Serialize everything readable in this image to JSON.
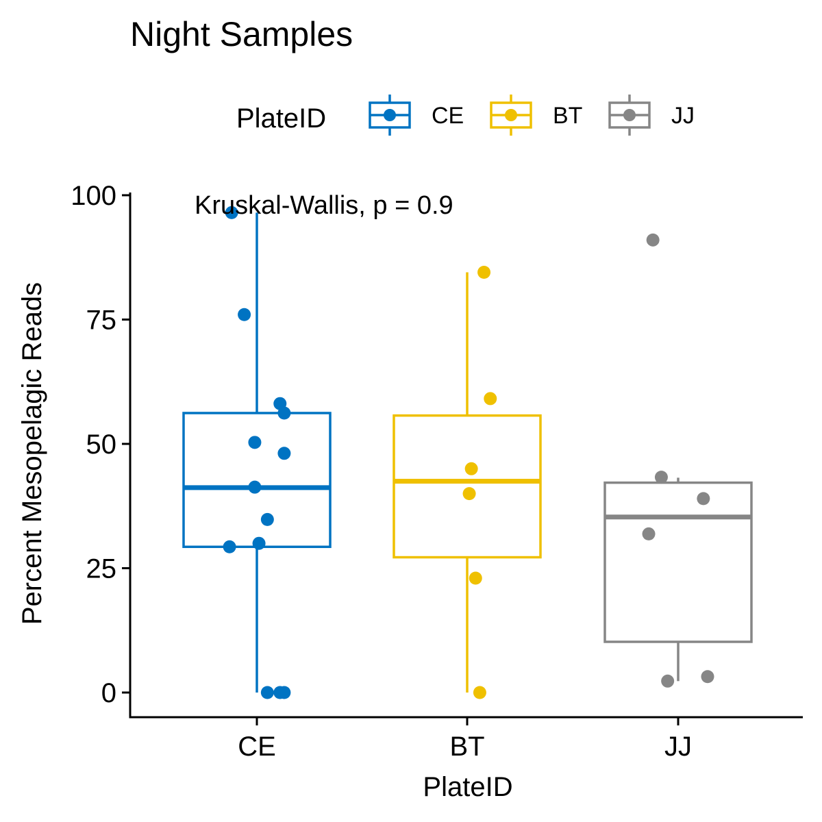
{
  "chart_data": {
    "type": "box",
    "title": "Night Samples",
    "xlabel": "PlateID",
    "ylabel": "Percent Mesopelagic Reads",
    "ylim": [
      -5,
      100
    ],
    "yticks": [
      0,
      25,
      50,
      75,
      100
    ],
    "annotation": "Kruskal-Wallis, p = 0.9",
    "legend": {
      "title": "PlateID",
      "position": "top"
    },
    "categories": [
      "CE",
      "BT",
      "JJ"
    ],
    "series": [
      {
        "name": "CE",
        "color": "#0073C2",
        "box": {
          "whisker_low": 0,
          "q1": 29.3,
          "median": 41.2,
          "q3": 56.2,
          "whisker_high": 96.5
        },
        "points": [
          {
            "jitter": -0.12,
            "value": 96.5
          },
          {
            "jitter": -0.06,
            "value": 76.0
          },
          {
            "jitter": 0.11,
            "value": 58.1
          },
          {
            "jitter": 0.13,
            "value": 56.2
          },
          {
            "jitter": -0.01,
            "value": 50.3
          },
          {
            "jitter": 0.13,
            "value": 48.1
          },
          {
            "jitter": -0.01,
            "value": 41.3
          },
          {
            "jitter": 0.05,
            "value": 34.8
          },
          {
            "jitter": 0.01,
            "value": 30.0
          },
          {
            "jitter": -0.13,
            "value": 29.3
          },
          {
            "jitter": 0.05,
            "value": 0
          },
          {
            "jitter": 0.11,
            "value": 0
          },
          {
            "jitter": 0.13,
            "value": 0
          }
        ]
      },
      {
        "name": "BT",
        "color": "#EFC000",
        "box": {
          "whisker_low": 0,
          "q1": 27.2,
          "median": 42.5,
          "q3": 55.7,
          "whisker_high": 84.5
        },
        "points": [
          {
            "jitter": 0.08,
            "value": 84.5
          },
          {
            "jitter": 0.11,
            "value": 59.1
          },
          {
            "jitter": 0.02,
            "value": 45.0
          },
          {
            "jitter": 0.01,
            "value": 40.0
          },
          {
            "jitter": 0.04,
            "value": 23.0
          },
          {
            "jitter": 0.06,
            "value": 0
          }
        ]
      },
      {
        "name": "JJ",
        "color": "#868686",
        "box": {
          "whisker_low": 2.3,
          "q1": 10.2,
          "median": 35.3,
          "q3": 42.2,
          "whisker_high": 43.2
        },
        "points": [
          {
            "jitter": -0.12,
            "value": 91.0
          },
          {
            "jitter": -0.08,
            "value": 43.3
          },
          {
            "jitter": 0.12,
            "value": 39.0
          },
          {
            "jitter": -0.14,
            "value": 31.9
          },
          {
            "jitter": 0.14,
            "value": 3.2
          },
          {
            "jitter": -0.05,
            "value": 2.3
          }
        ]
      }
    ]
  }
}
